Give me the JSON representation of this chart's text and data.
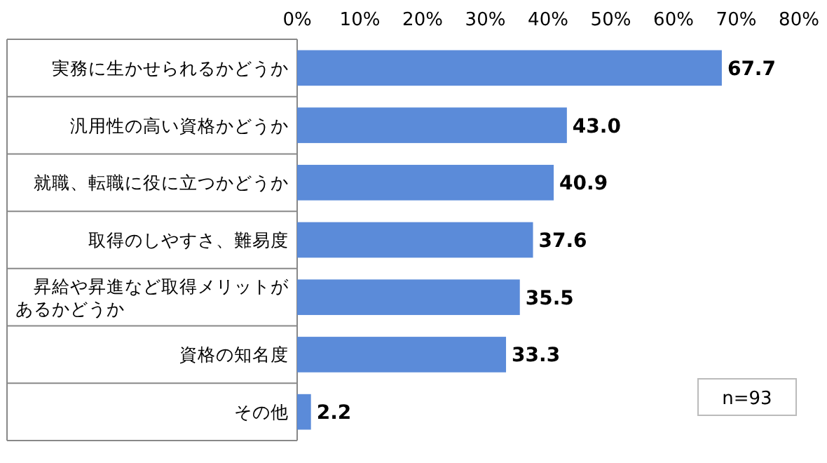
{
  "chart_data": {
    "type": "bar",
    "orientation": "horizontal",
    "categories": [
      "実務に生かせられるかどうか",
      "汎用性の高い資格かどうか",
      "就職、転職に役に立つかどうか",
      "取得のしやすさ、難易度",
      "昇給や昇進など取得メリットがあるかどうか",
      "資格の知名度",
      "その他"
    ],
    "values": [
      67.7,
      43.0,
      40.9,
      37.6,
      35.5,
      33.3,
      2.2
    ],
    "color": "#5b8bd9",
    "xlim": [
      0,
      80
    ],
    "xticks": [
      {
        "value": 0,
        "label": "0%"
      },
      {
        "value": 10,
        "label": "10%"
      },
      {
        "value": 20,
        "label": "20%"
      },
      {
        "value": 30,
        "label": "30%"
      },
      {
        "value": 40,
        "label": "40%"
      },
      {
        "value": 50,
        "label": "50%"
      },
      {
        "value": 60,
        "label": "60%"
      },
      {
        "value": 70,
        "label": "70%"
      },
      {
        "value": 80,
        "label": "80%"
      }
    ],
    "value_labels": [
      "67.7",
      "43.0",
      "40.9",
      "37.6",
      "35.5",
      "33.3",
      "2.2"
    ],
    "grid": false,
    "annotations": [
      "n=93"
    ]
  }
}
